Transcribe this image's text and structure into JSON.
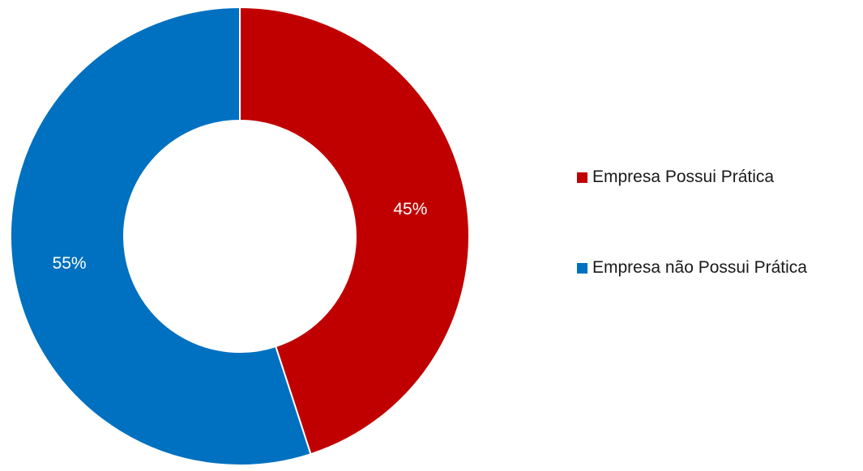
{
  "chart_data": {
    "type": "pie",
    "variant": "donut",
    "categories": [
      "Empresa Possui Prática",
      "Empresa não Possui Prática"
    ],
    "values": [
      45,
      55
    ],
    "unit": "%",
    "data_labels": [
      "45%",
      "55%"
    ],
    "colors": [
      "#C00000",
      "#0070C0"
    ],
    "label_color": "#ffffff",
    "legend_position": "right",
    "title": ""
  }
}
